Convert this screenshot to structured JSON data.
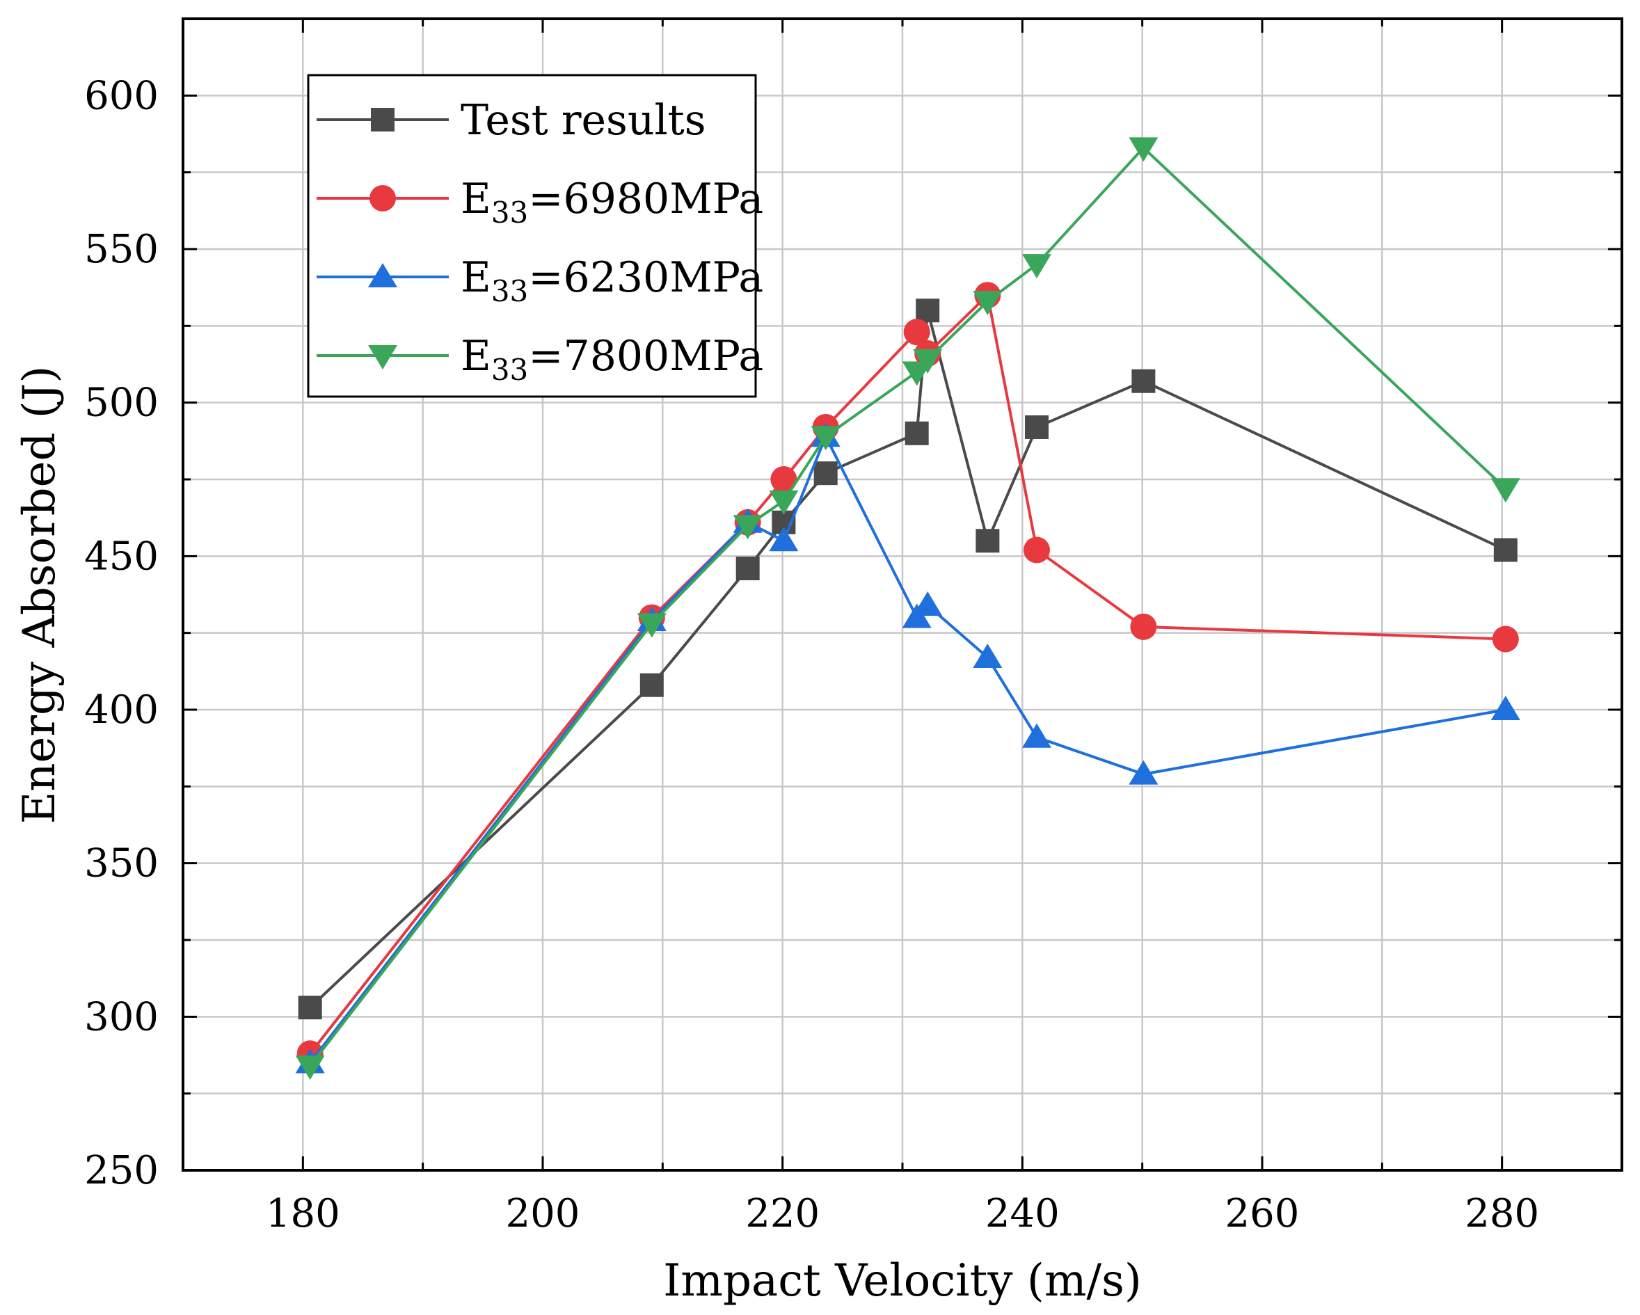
{
  "chart_data": {
    "type": "line",
    "title": "",
    "xlabel": "Impact Velocity (m/s)",
    "ylabel": "Energy Absorbed (J)",
    "xlim": [
      170,
      290
    ],
    "ylim": [
      250,
      625
    ],
    "x_ticks": [
      180,
      200,
      220,
      240,
      260,
      280
    ],
    "x_tick_labels": [
      "180",
      "200",
      "220",
      "240",
      "260",
      "280"
    ],
    "y_ticks": [
      250,
      300,
      350,
      400,
      450,
      500,
      550,
      600
    ],
    "y_tick_labels": [
      "250",
      "300",
      "350",
      "400",
      "450",
      "500",
      "550",
      "600"
    ],
    "grid": true,
    "legend_position": "top-left",
    "series": [
      {
        "name": "Test results",
        "legend": {
          "base": "Test results",
          "sub": "",
          "rest": ""
        },
        "color": "#4a4a4a",
        "marker": "square",
        "points": [
          [
            180.6,
            303
          ],
          [
            209.1,
            408
          ],
          [
            217.1,
            446
          ],
          [
            220.1,
            461
          ],
          [
            223.6,
            477
          ],
          [
            231.2,
            490
          ],
          [
            232.1,
            530
          ],
          [
            237.1,
            455
          ],
          [
            241.2,
            492
          ],
          [
            250.1,
            507
          ],
          [
            280.3,
            452
          ]
        ]
      },
      {
        "name": "E33=6980MPa",
        "legend": {
          "base": "E",
          "sub": "33",
          "rest": "=6980MPa"
        },
        "color": "#e8393f",
        "marker": "circle",
        "points": [
          [
            180.6,
            288
          ],
          [
            209.1,
            430
          ],
          [
            217.1,
            461
          ],
          [
            220.1,
            475
          ],
          [
            223.6,
            492
          ],
          [
            231.2,
            523
          ],
          [
            232.1,
            516
          ],
          [
            237.1,
            535
          ],
          [
            241.2,
            452
          ],
          [
            250.1,
            427
          ],
          [
            280.3,
            423
          ]
        ]
      },
      {
        "name": "E33=6230MPa",
        "legend": {
          "base": "E",
          "sub": "33",
          "rest": "=6230MPa"
        },
        "color": "#1f6fdc",
        "marker": "triangle-up",
        "points": [
          [
            180.6,
            285
          ],
          [
            209.1,
            429
          ],
          [
            217.1,
            461
          ],
          [
            220.1,
            455
          ],
          [
            223.6,
            489
          ],
          [
            231.2,
            430
          ],
          [
            232.1,
            434
          ],
          [
            237.1,
            417
          ],
          [
            241.2,
            391
          ],
          [
            250.1,
            379
          ],
          [
            280.3,
            400
          ]
        ]
      },
      {
        "name": "E33=7800MPa",
        "legend": {
          "base": "E",
          "sub": "33",
          "rest": "=7800MPa"
        },
        "color": "#3aa65a",
        "marker": "triangle-down",
        "points": [
          [
            180.6,
            284
          ],
          [
            209.1,
            428
          ],
          [
            217.1,
            460
          ],
          [
            220.1,
            468
          ],
          [
            223.6,
            489
          ],
          [
            231.2,
            510
          ],
          [
            232.1,
            514
          ],
          [
            237.1,
            533
          ],
          [
            241.2,
            545
          ],
          [
            250.1,
            583
          ],
          [
            280.3,
            472
          ]
        ]
      }
    ]
  }
}
